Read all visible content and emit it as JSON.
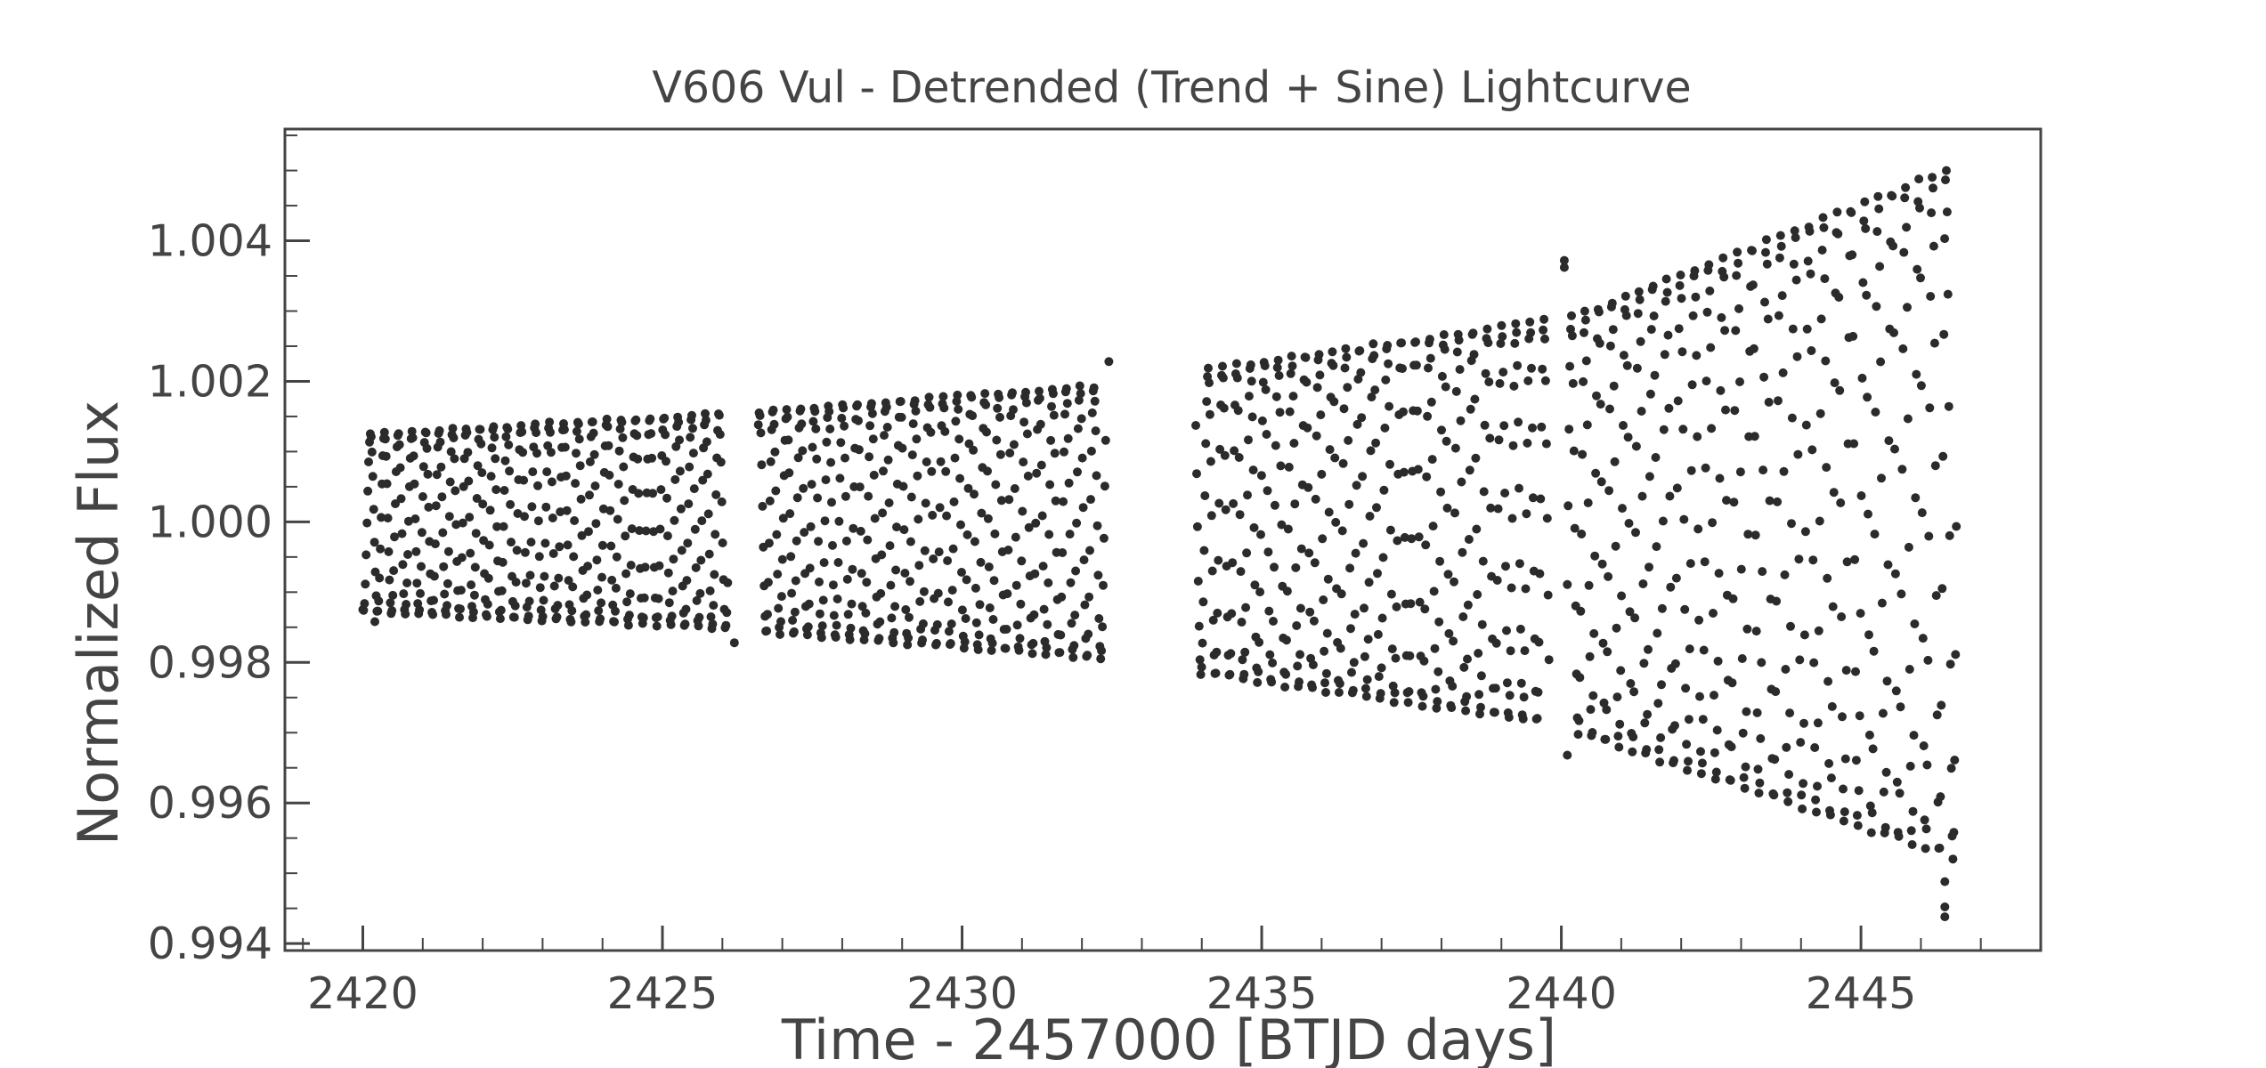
{
  "chart_data": {
    "type": "scatter",
    "title": "V606 Vul - Detrended (Trend + Sine) Lightcurve",
    "xlabel": "Time - 2457000 [BTJD days]",
    "ylabel": "Normalized Flux",
    "xlim": [
      2418.7,
      2448.0
    ],
    "ylim": [
      0.9939,
      1.00559
    ],
    "xticks": [
      2420,
      2425,
      2430,
      2435,
      2440,
      2445
    ],
    "xtick_labels": [
      "2420",
      "2425",
      "2430",
      "2435",
      "2440",
      "2445"
    ],
    "yticks": [
      0.994,
      0.996,
      0.998,
      1.0,
      1.002,
      1.004
    ],
    "ytick_labels": [
      "0.994",
      "0.996",
      "0.998",
      "1.000",
      "1.002",
      "1.004"
    ],
    "grid": false,
    "legend": "none",
    "marker_color": "#2b2b2b",
    "segments": [
      {
        "t_start": 2420.0,
        "t_end": 2426.1,
        "upper_start": 1.00125,
        "upper_end": 1.00155,
        "lower_start": 0.99872,
        "lower_end": 0.99848
      },
      {
        "t_start": 2426.6,
        "t_end": 2432.4,
        "upper_start": 1.00158,
        "upper_end": 1.00195,
        "lower_start": 0.99843,
        "lower_end": 0.99805
      },
      {
        "t_start": 2433.9,
        "t_end": 2439.8,
        "upper_start": 1.00215,
        "upper_end": 1.00288,
        "lower_start": 0.99785,
        "lower_end": 0.99712
      },
      {
        "t_start": 2440.1,
        "t_end": 2446.6,
        "upper_start": 1.0029,
        "upper_end": 1.00508,
        "lower_start": 0.99703,
        "lower_end": 0.99518
      }
    ],
    "outliers": [
      {
        "x": 2440.05,
        "y": 1.00372
      },
      {
        "x": 2440.05,
        "y": 1.00362
      },
      {
        "x": 2440.1,
        "y": 0.99668
      },
      {
        "x": 2446.4,
        "y": 0.99438
      },
      {
        "x": 2446.4,
        "y": 0.99452
      },
      {
        "x": 2446.4,
        "y": 0.99488
      },
      {
        "x": 2432.45,
        "y": 1.00228
      },
      {
        "x": 2426.2,
        "y": 0.99828
      },
      {
        "x": 2420.2,
        "y": 0.99858
      }
    ]
  }
}
